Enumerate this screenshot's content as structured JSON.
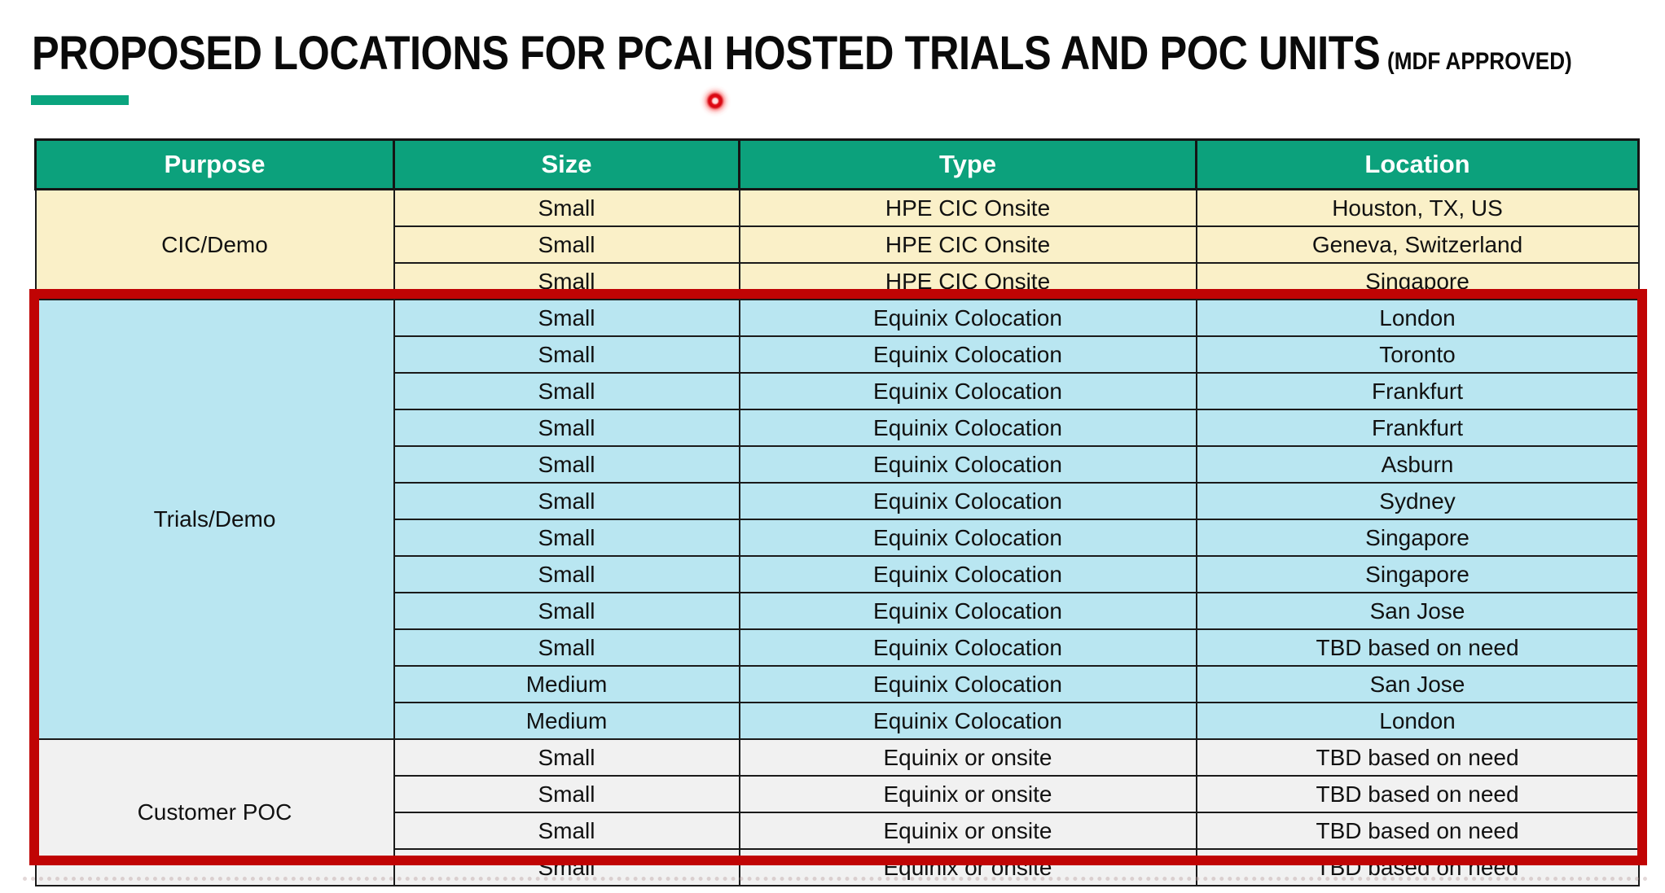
{
  "title": {
    "main": "PROPOSED LOCATIONS FOR PCAI HOSTED TRIALS AND POC UNITS",
    "suffix": "(MDF APPROVED)"
  },
  "colors": {
    "accent_green": "#0aa47e",
    "header_teal": "#0ca17c",
    "section_cream": "#faf0c8",
    "section_blue": "#b9e6f1",
    "section_gray": "#f1f1f1",
    "highlight_red": "#c00404",
    "laser_red": "#e30b16"
  },
  "annotations": {
    "laser_pointer": "red laser pointer dot near title",
    "highlight_box": "red rectangle around Trials/Demo and Customer POC sections"
  },
  "table": {
    "columns": [
      "Purpose",
      "Size",
      "Type",
      "Location"
    ],
    "sections": [
      {
        "purpose": "CIC/Demo",
        "bg": "cream",
        "rows": [
          [
            "Small",
            "HPE CIC Onsite",
            "Houston, TX, US"
          ],
          [
            "Small",
            "HPE CIC Onsite",
            "Geneva, Switzerland"
          ],
          [
            "Small",
            "HPE CIC Onsite",
            "Singapore"
          ]
        ]
      },
      {
        "purpose": "Trials/Demo",
        "bg": "blue",
        "rows": [
          [
            "Small",
            "Equinix Colocation",
            "London"
          ],
          [
            "Small",
            "Equinix Colocation",
            "Toronto"
          ],
          [
            "Small",
            "Equinix Colocation",
            "Frankfurt"
          ],
          [
            "Small",
            "Equinix Colocation",
            "Frankfurt"
          ],
          [
            "Small",
            "Equinix Colocation",
            "Asburn"
          ],
          [
            "Small",
            "Equinix Colocation",
            "Sydney"
          ],
          [
            "Small",
            "Equinix Colocation",
            "Singapore"
          ],
          [
            "Small",
            "Equinix Colocation",
            "Singapore"
          ],
          [
            "Small",
            "Equinix Colocation",
            "San Jose"
          ],
          [
            "Small",
            "Equinix Colocation",
            "TBD based on need"
          ],
          [
            "Medium",
            "Equinix Colocation",
            "San Jose"
          ],
          [
            "Medium",
            "Equinix Colocation",
            "London"
          ]
        ]
      },
      {
        "purpose": "Customer POC",
        "bg": "gray",
        "rows": [
          [
            "Small",
            "Equinix or onsite",
            "TBD based on need"
          ],
          [
            "Small",
            "Equinix or onsite",
            "TBD based on need"
          ],
          [
            "Small",
            "Equinix or onsite",
            "TBD based on need"
          ],
          [
            "Small",
            "Equinix or onsite",
            "TBD based on need"
          ]
        ]
      }
    ]
  }
}
